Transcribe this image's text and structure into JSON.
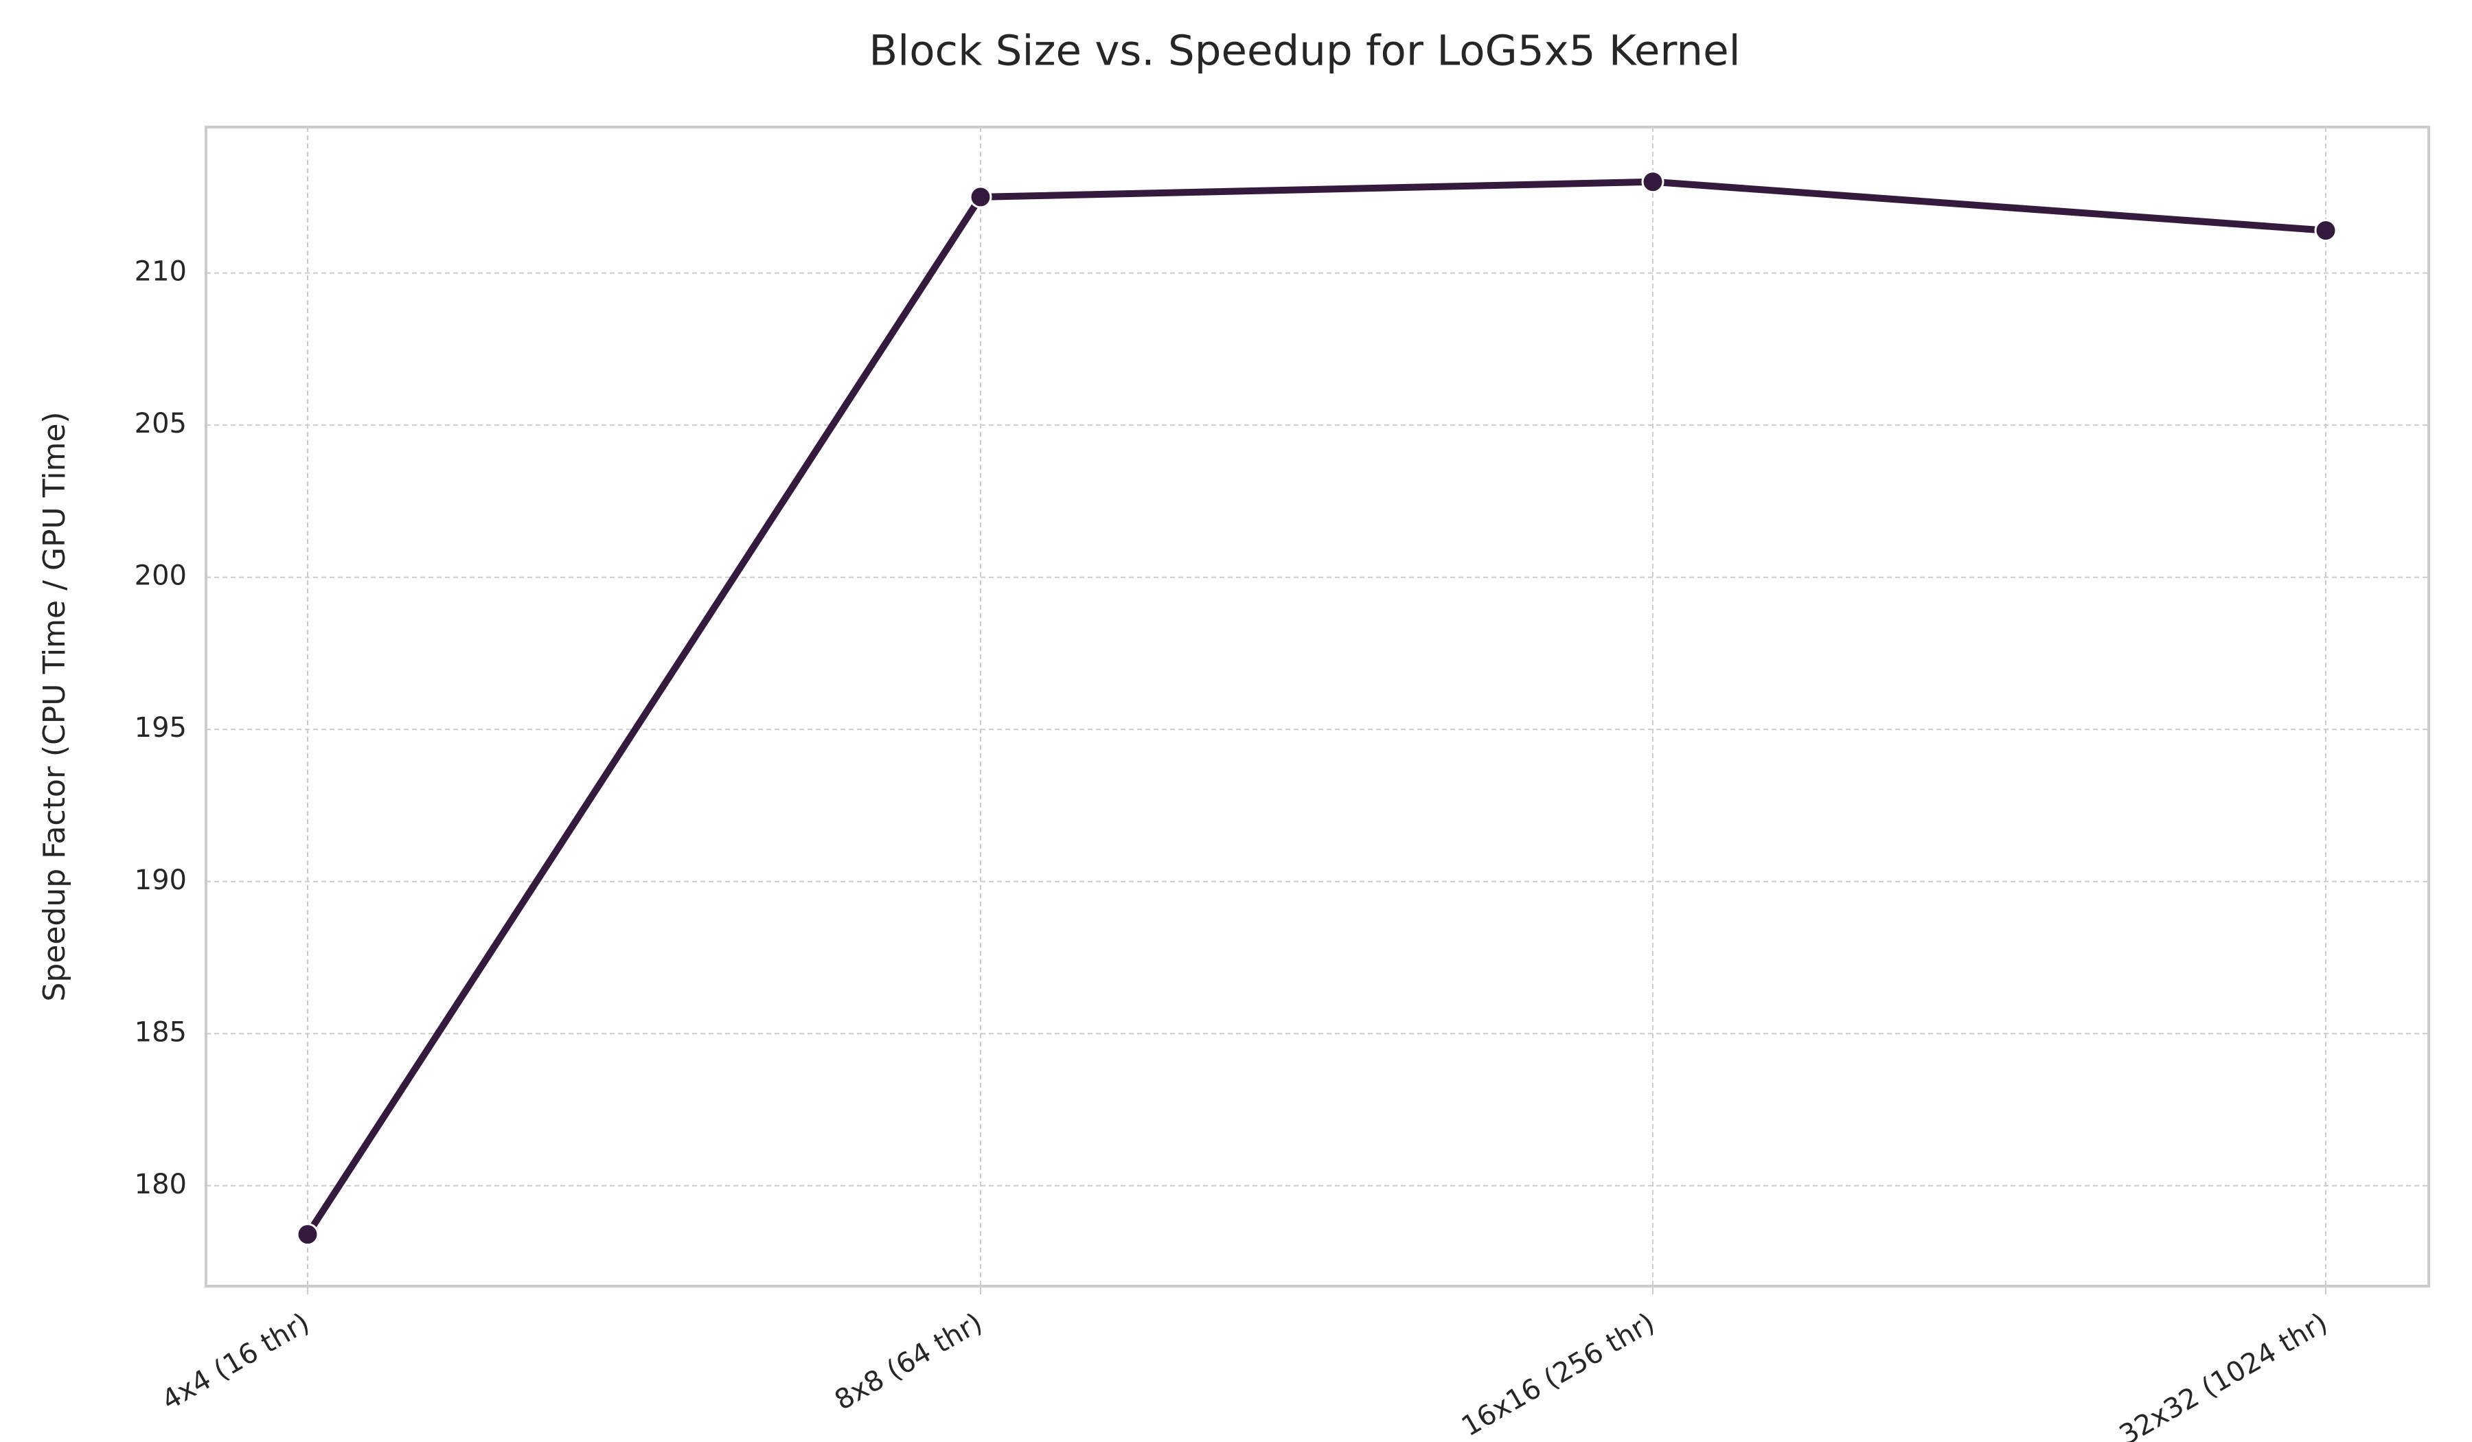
{
  "chart_data": {
    "type": "line",
    "title": "Block Size vs. Speedup for LoG5x5 Kernel",
    "xlabel": "",
    "ylabel": "Speedup Factor (CPU Time / GPU Time)",
    "categories": [
      "4x4 (16 thr)",
      "8x8 (64 thr)",
      "16x16 (256 thr)",
      "32x32 (1024 thr)"
    ],
    "series": [
      {
        "values": [
          178.4,
          212.5,
          213.0,
          211.4
        ],
        "color": "#341a3c"
      }
    ],
    "yticks": [
      180,
      185,
      190,
      195,
      200,
      205,
      210
    ],
    "ylim": [
      176.7,
      214.8
    ],
    "grid": true,
    "legend": "none"
  }
}
